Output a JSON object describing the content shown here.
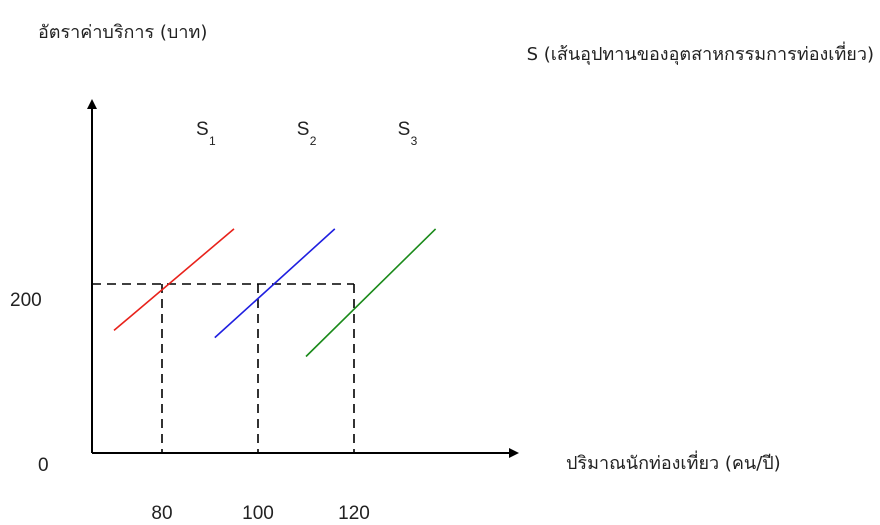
{
  "chart_data": {
    "type": "line",
    "ylabel": "อัตราค่าบริการ (บาท)",
    "xlabel": "ปริมาณนักท่องเที่ยว (คน/ปี)",
    "annotation": "S (เส้นอุปทานของอุตสาหกรรมการท่องเที่ยว)",
    "origin_label": "0",
    "y_ticks": [
      {
        "value": 200,
        "label": "200"
      }
    ],
    "x_ticks": [
      {
        "value": 80,
        "label": "80"
      },
      {
        "value": 100,
        "label": "100"
      },
      {
        "value": 120,
        "label": "120"
      }
    ],
    "reference": {
      "y": 200,
      "x": [
        80,
        100,
        120
      ],
      "style": "dashed"
    },
    "series": [
      {
        "name": "S",
        "subscript": "1",
        "color": "#e8221b",
        "x": [
          70,
          95
        ],
        "y": [
          168,
          238
        ]
      },
      {
        "name": "S",
        "subscript": "2",
        "color": "#1f1fe0",
        "x": [
          91,
          116
        ],
        "y": [
          163,
          238
        ]
      },
      {
        "name": "S",
        "subscript": "3",
        "color": "#1a8a1a",
        "x": [
          110,
          137
        ],
        "y": [
          150,
          238
        ]
      }
    ]
  }
}
